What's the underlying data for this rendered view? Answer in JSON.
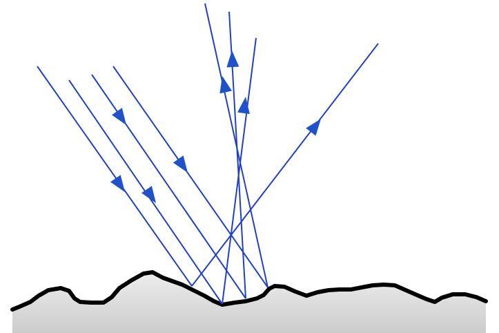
{
  "diagram": {
    "ray_color": "#1f3fc8",
    "arrow_color": "#1f52c8",
    "surface_color": "#000000",
    "shadow_top_color": "#ededed",
    "shadow_bottom_color": "#cccccc",
    "background_color": "#ffffff",
    "incident_ray_count": 4,
    "reflected_ray_count": 4
  }
}
